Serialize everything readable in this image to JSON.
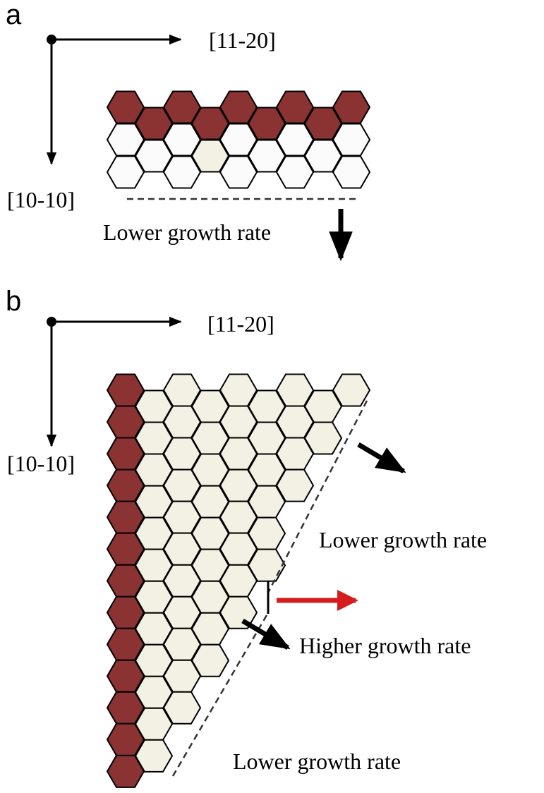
{
  "panel_a": {
    "label": "a",
    "axis_x": "[11-20]",
    "axis_y": "[10-10]",
    "annotation": "Lower growth rate"
  },
  "panel_b": {
    "label": "b",
    "axis_x": "[11-20]",
    "axis_y": "[10-10]",
    "annotations": [
      "Lower growth rate",
      "Higher growth rate",
      "Lower growth rate"
    ]
  }
}
